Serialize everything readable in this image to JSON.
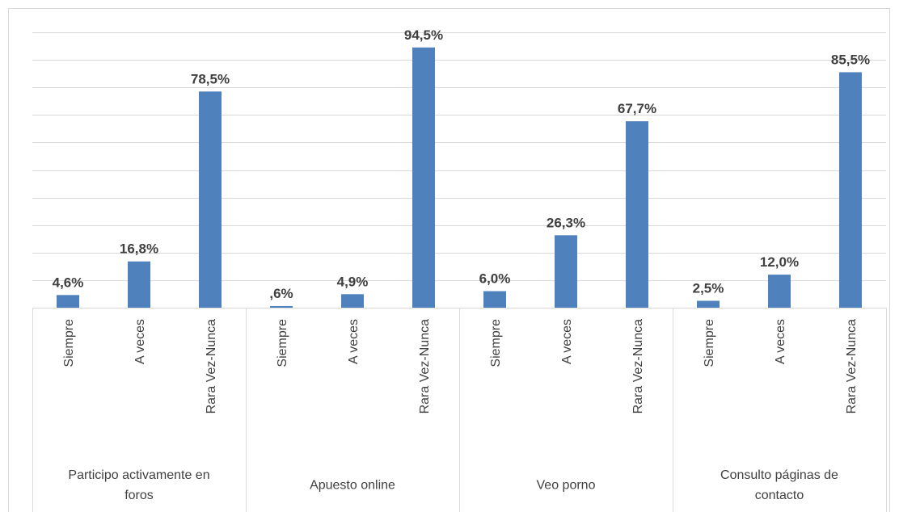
{
  "chart_data": {
    "type": "bar",
    "color": "#4f81bd",
    "ylim": [
      0,
      100
    ],
    "yticks": [
      0,
      10,
      20,
      30,
      40,
      50,
      60,
      70,
      80,
      90,
      100
    ],
    "grid": true,
    "groups": [
      {
        "name": "Participo activamente en foros",
        "categories": [
          "Siempre",
          "A veces",
          "Rara Vez-Nunca"
        ],
        "values": [
          4.6,
          16.8,
          78.5
        ],
        "value_labels": [
          "4,6%",
          "16,8%",
          "78,5%"
        ]
      },
      {
        "name": "Apuesto online",
        "categories": [
          "Siempre",
          "A veces",
          "Rara Vez-Nunca"
        ],
        "values": [
          0.6,
          4.9,
          94.5
        ],
        "value_labels": [
          ",6%",
          "4,9%",
          "94,5%"
        ]
      },
      {
        "name": "Veo porno",
        "categories": [
          "Siempre",
          "A veces",
          "Rara Vez-Nunca"
        ],
        "values": [
          6.0,
          26.3,
          67.7
        ],
        "value_labels": [
          "6,0%",
          "26,3%",
          "67,7%"
        ]
      },
      {
        "name": "Consulto páginas de contacto",
        "categories": [
          "Siempre",
          "A veces",
          "Rara Vez-Nunca"
        ],
        "values": [
          2.5,
          12.0,
          85.5
        ],
        "value_labels": [
          "2,5%",
          "12,0%",
          "85,5%"
        ]
      }
    ]
  }
}
